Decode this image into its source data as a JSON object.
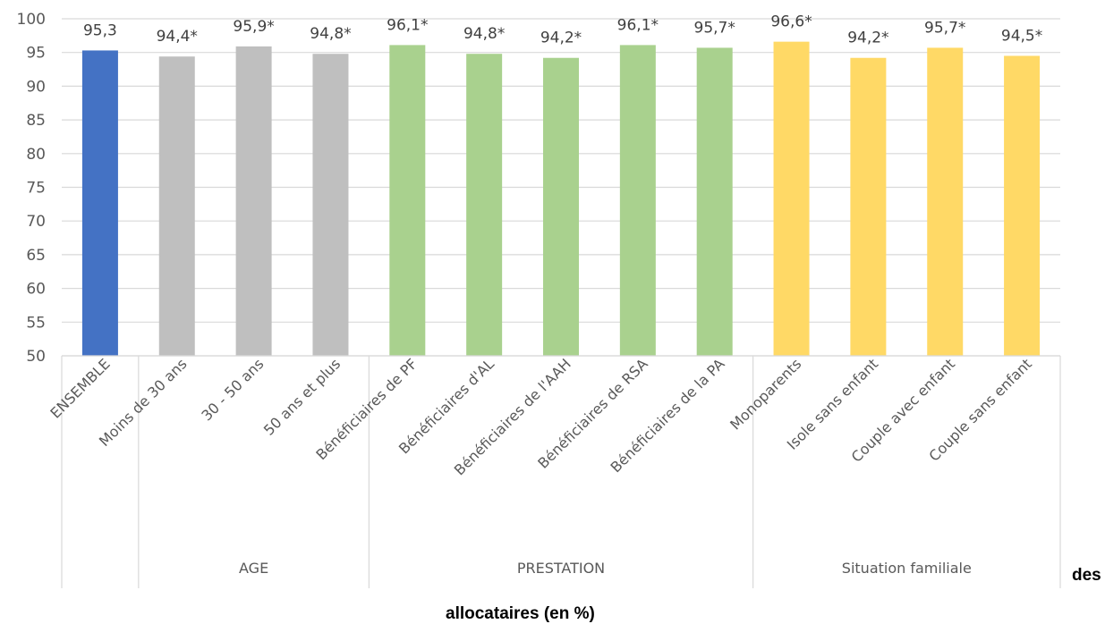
{
  "chart_data": {
    "type": "bar",
    "ylim": [
      50,
      100
    ],
    "yticks": [
      50,
      55,
      60,
      65,
      70,
      75,
      80,
      85,
      90,
      95,
      100
    ],
    "grid": true,
    "categories": [
      "ENSEMBLE",
      "Moins de 30 ans",
      "30 - 50 ans",
      "50 ans et plus",
      "Bénéficiaires de PF",
      "Bénéficiaires d'AL",
      "Bénéficiaires de l'AAH",
      "Bénéficiaires de RSA",
      "Bénéficiaires de la PA",
      "Monoparents",
      "Isole sans enfant",
      "Couple avec enfant",
      "Couple sans enfant"
    ],
    "values": [
      95.3,
      94.4,
      95.9,
      94.8,
      96.1,
      94.8,
      94.2,
      96.1,
      95.7,
      96.6,
      94.2,
      95.7,
      94.5
    ],
    "data_labels": [
      "95,3",
      "94,4*",
      "95,9*",
      "94,8*",
      "96,1*",
      "94,8*",
      "94,2*",
      "96,1*",
      "95,7*",
      "96,6*",
      "94,2*",
      "95,7*",
      "94,5*"
    ],
    "bar_colors": [
      "#4472C4",
      "#BFBFBF",
      "#BFBFBF",
      "#BFBFBF",
      "#A9D18E",
      "#A9D18E",
      "#A9D18E",
      "#A9D18E",
      "#A9D18E",
      "#FFD966",
      "#FFD966",
      "#FFD966",
      "#FFD966"
    ],
    "groups": [
      {
        "label": "",
        "start": 0,
        "end": 0
      },
      {
        "label": "AGE",
        "start": 1,
        "end": 3
      },
      {
        "label": "PRESTATION",
        "start": 4,
        "end": 8
      },
      {
        "label": "Situation familiale",
        "start": 9,
        "end": 12
      }
    ]
  },
  "caption": {
    "line1_tail": "des",
    "line2": "allocataires (en %)"
  }
}
